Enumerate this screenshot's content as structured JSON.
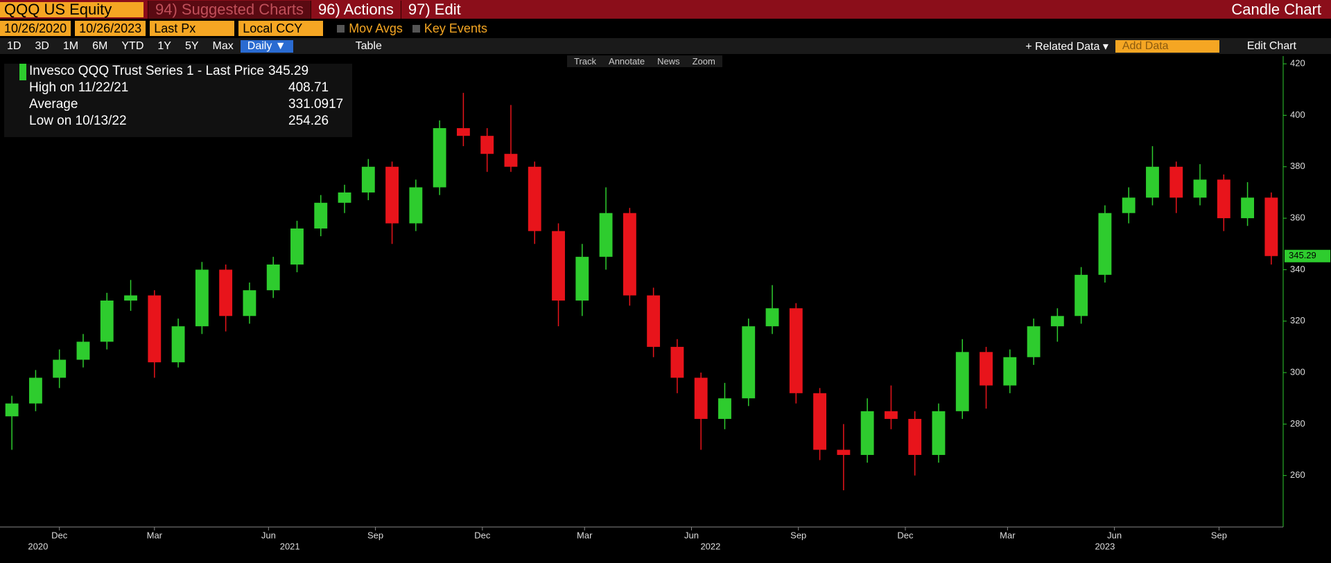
{
  "ui": {
    "ticker": "QQQ US Equity",
    "suggested": "94) Suggested Charts",
    "actions": "96) Actions",
    "edit": "97) Edit",
    "chart_kind": "Candle Chart",
    "start_date": "10/26/2020",
    "end_date": "10/26/2023",
    "field": "Last Px",
    "currency": "Local CCY",
    "mov_avgs": "Mov Avgs",
    "key_events": "Key Events",
    "periods": [
      "1D",
      "3D",
      "1M",
      "6M",
      "YTD",
      "1Y",
      "5Y",
      "Max"
    ],
    "frequency": "Daily ▼",
    "table": "Table",
    "related": "+ Related Data ▾",
    "add_data": "Add Data",
    "edit_chart": "Edit Chart",
    "tools": [
      "Track",
      "Annotate",
      "News",
      "Zoom"
    ]
  },
  "chart_data": {
    "type": "candlestick",
    "legend": [
      {
        "label": "Invesco QQQ Trust Series 1 - Last Price",
        "value": "345.29"
      },
      {
        "label": "High on 11/22/21",
        "value": "408.71"
      },
      {
        "label": "Average",
        "value": "331.0917"
      },
      {
        "label": "Low on 10/13/22",
        "value": "254.26"
      }
    ],
    "last_label": "345.29",
    "categories": [
      null,
      null,
      null,
      null,
      null,
      null,
      null,
      null,
      null,
      null,
      null,
      null,
      null,
      null,
      null,
      null,
      null,
      null,
      null,
      null,
      null,
      null,
      null,
      null,
      null,
      null,
      null,
      null,
      null,
      null,
      null,
      null,
      null,
      null,
      null,
      null,
      null,
      null,
      null,
      null,
      null,
      null,
      null,
      null,
      null,
      null,
      null,
      null,
      null,
      null,
      null,
      null,
      null,
      null
    ],
    "open": [
      283,
      288,
      298,
      305,
      312,
      328,
      330,
      304,
      318,
      340,
      322,
      332,
      342,
      356,
      366,
      370,
      380,
      358,
      372,
      395,
      392,
      385,
      380,
      355,
      328,
      345,
      362,
      330,
      310,
      298,
      282,
      290,
      318,
      325,
      292,
      270,
      268,
      285,
      282,
      268,
      285,
      308,
      295,
      306,
      318,
      322,
      338,
      362,
      368,
      380,
      368,
      375,
      360,
      368
    ],
    "high": [
      291,
      301,
      309,
      315,
      331,
      336,
      332,
      321,
      343,
      342,
      335,
      345,
      359,
      369,
      373,
      383,
      382,
      375,
      398,
      408.71,
      395,
      404,
      382,
      358,
      350,
      372,
      364,
      333,
      313,
      300,
      296,
      321,
      334,
      327,
      294,
      280,
      290,
      295,
      285,
      288,
      313,
      310,
      309,
      321,
      325,
      341,
      365,
      372,
      388,
      382,
      381,
      377,
      374,
      370
    ],
    "low": [
      270,
      285,
      294,
      302,
      309,
      324,
      298,
      302,
      315,
      316,
      319,
      329,
      339,
      353,
      362,
      367,
      350,
      355,
      369,
      388,
      378,
      378,
      350,
      318,
      322,
      340,
      326,
      306,
      292,
      270,
      278,
      287,
      315,
      288,
      266,
      254.26,
      265,
      278,
      260,
      265,
      282,
      286,
      292,
      303,
      312,
      319,
      335,
      358,
      365,
      362,
      365,
      355,
      357,
      342
    ],
    "close": [
      288,
      298,
      305,
      312,
      328,
      330,
      304,
      318,
      340,
      322,
      332,
      342,
      356,
      366,
      370,
      380,
      358,
      372,
      395,
      392,
      385,
      380,
      355,
      328,
      345,
      362,
      330,
      310,
      298,
      282,
      290,
      318,
      325,
      292,
      270,
      268,
      285,
      282,
      268,
      285,
      308,
      295,
      306,
      318,
      322,
      338,
      362,
      368,
      380,
      368,
      375,
      360,
      368,
      345.29
    ],
    "up_color": "#2ecc2e",
    "down_color": "#e8141b",
    "xlim": [
      0,
      54
    ],
    "xticks": [
      {
        "value": 2.5,
        "label": "Dec"
      },
      {
        "value": 6.5,
        "label": "Mar"
      },
      {
        "value": 11.3,
        "label": "Jun"
      },
      {
        "value": 15.8,
        "label": "Sep"
      },
      {
        "value": 20.3,
        "label": "Dec"
      },
      {
        "value": 24.6,
        "label": "Mar"
      },
      {
        "value": 29.1,
        "label": "Jun"
      },
      {
        "value": 33.6,
        "label": "Sep"
      },
      {
        "value": 38.1,
        "label": "Dec"
      },
      {
        "value": 42.4,
        "label": "Mar"
      },
      {
        "value": 46.9,
        "label": "Jun"
      },
      {
        "value": 51.3,
        "label": "Sep"
      }
    ],
    "year_ticks": [
      {
        "value": 1.6,
        "label": "2020"
      },
      {
        "value": 12.2,
        "label": "2021"
      },
      {
        "value": 29.9,
        "label": "2022"
      },
      {
        "value": 46.5,
        "label": "2023"
      }
    ],
    "ylim": [
      240,
      423
    ],
    "yticks": [
      260,
      280,
      300,
      320,
      340,
      360,
      380,
      400,
      420
    ]
  }
}
